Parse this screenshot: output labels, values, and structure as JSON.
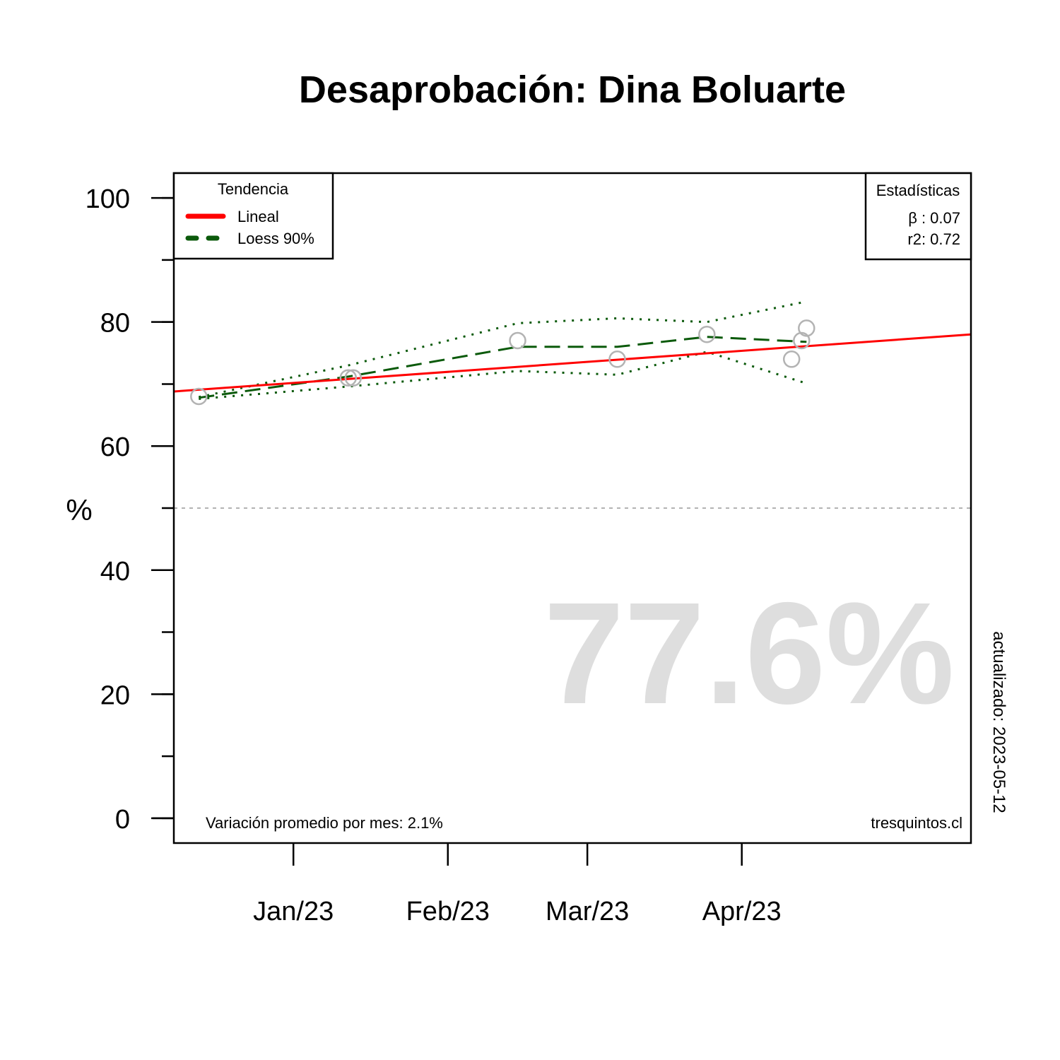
{
  "chart_data": {
    "type": "scatter",
    "title": "Desaprobación: Dina Boluarte",
    "ylabel": "%",
    "xlabel": "",
    "ylim": [
      -4,
      104
    ],
    "xlim": [
      "2022-12-08",
      "2023-05-17"
    ],
    "y_ticks": [
      0,
      10,
      20,
      30,
      40,
      50,
      60,
      70,
      80,
      90,
      100
    ],
    "y_tick_labels": [
      "0",
      "20",
      "40",
      "60",
      "80",
      "100"
    ],
    "x_ticks": [
      {
        "date": "2023-01-01",
        "label": "Jan/23"
      },
      {
        "date": "2023-02-01",
        "label": "Feb/23"
      },
      {
        "date": "2023-03-01",
        "label": "Mar/23"
      },
      {
        "date": "2023-04-01",
        "label": "Apr/23"
      }
    ],
    "reference_line": {
      "y": 50,
      "style": "dotted",
      "color": "#b3b3b3"
    },
    "points": [
      {
        "x": "2022-12-13",
        "y": 68
      },
      {
        "x": "2023-01-12",
        "y": 71
      },
      {
        "x": "2023-01-13",
        "y": 71
      },
      {
        "x": "2023-02-15",
        "y": 77
      },
      {
        "x": "2023-03-07",
        "y": 74
      },
      {
        "x": "2023-03-25",
        "y": 78
      },
      {
        "x": "2023-04-11",
        "y": 74
      },
      {
        "x": "2023-04-13",
        "y": 77
      },
      {
        "x": "2023-04-14",
        "y": 79
      }
    ],
    "series": [
      {
        "name": "Lineal",
        "kind": "linear",
        "color": "#ff0000",
        "x": [
          "2022-12-08",
          "2023-05-17"
        ],
        "y": [
          68.8,
          78.0
        ]
      },
      {
        "name": "Loess 90%",
        "kind": "loess",
        "color": "#0b5a0b",
        "x": [
          "2022-12-13",
          "2023-01-12",
          "2023-02-15",
          "2023-03-07",
          "2023-03-25",
          "2023-04-14"
        ],
        "y": [
          67.8,
          71.2,
          76.0,
          76.0,
          77.6,
          76.8
        ]
      },
      {
        "kind": "loess-upper",
        "color": "#0b5a0b",
        "x": [
          "2022-12-13",
          "2023-01-12",
          "2023-02-15",
          "2023-03-07",
          "2023-03-25",
          "2023-04-14"
        ],
        "y": [
          67.9,
          73.0,
          79.8,
          80.6,
          80.0,
          83.3
        ]
      },
      {
        "kind": "loess-lower",
        "color": "#0b5a0b",
        "x": [
          "2022-12-13",
          "2023-01-12",
          "2023-02-15",
          "2023-03-07",
          "2023-03-25",
          "2023-04-14"
        ],
        "y": [
          67.6,
          69.6,
          72.1,
          71.5,
          75.2,
          70.1
        ]
      }
    ],
    "legend": {
      "title": "Tendencia",
      "position": "top-left",
      "items": [
        {
          "label": "Lineal",
          "color": "#ff0000",
          "style": "solid"
        },
        {
          "label": "Loess 90%",
          "color": "#0b5a0b",
          "style": "dashed"
        }
      ]
    },
    "stats_box": {
      "title": "Estadísticas",
      "position": "top-right",
      "beta": "β : 0.07",
      "r2": "r2: 0.72"
    },
    "big_value": "77.6%",
    "footer_left": "Variación promedio por mes: 2.1%",
    "footer_right": "tresquintos.cl",
    "side_note": "actualizado: 2023-05-12",
    "colors": {
      "points": "#b3b3b3",
      "big_value": "#dedede",
      "axis": "#000000"
    }
  }
}
